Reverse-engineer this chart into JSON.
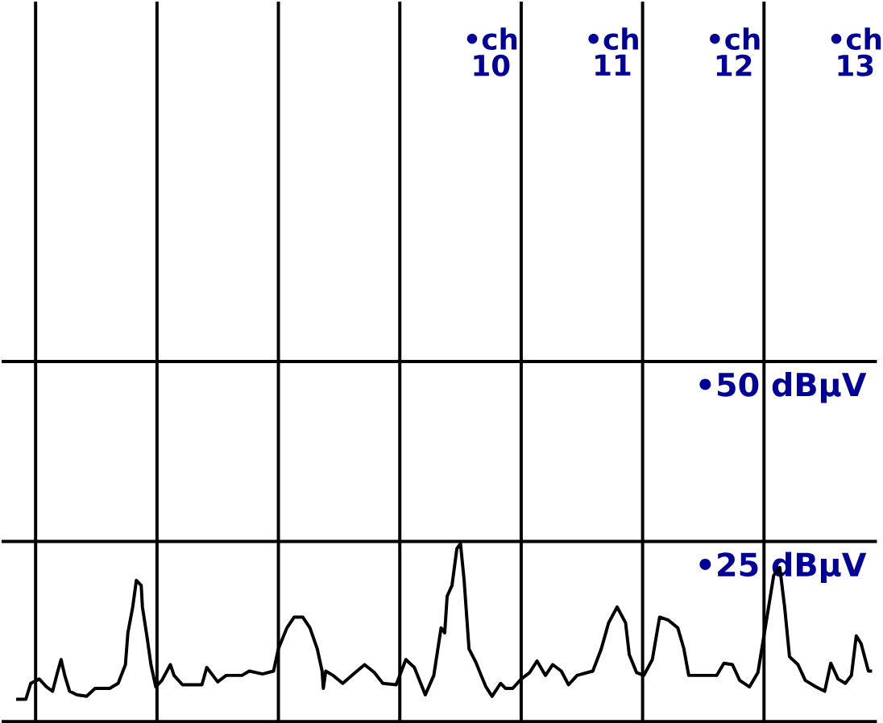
{
  "chart_data": {
    "type": "line",
    "xlim": [
      5.97,
      13.18
    ],
    "ylim": [
      0,
      100
    ],
    "xticks": [
      {
        "value": 6.25,
        "label": null
      },
      {
        "value": 7.25,
        "label": null
      },
      {
        "value": 8.25,
        "label": null
      },
      {
        "value": 9.25,
        "label": null
      },
      10,
      {
        "value": 10.25,
        "label": null
      },
      11,
      {
        "value": 11.25,
        "label": null
      },
      12,
      {
        "value": 12.25,
        "label": null
      },
      13
    ],
    "annotations": [
      "•ch",
      "•ch",
      "•ch",
      "•ch"
    ],
    "yticks": [
      {
        "value": 25,
        "label": "•25 dBµV"
      },
      {
        "value": 50,
        "label": "•50 dBµV"
      }
    ],
    "grid": true,
    "series": [
      {
        "color": "#000000",
        "x": [
          6.09,
          6.17,
          6.21,
          6.28,
          6.34,
          6.39,
          6.43,
          6.46,
          6.49,
          6.53,
          6.59,
          6.67,
          6.74,
          6.86,
          6.93,
          6.99,
          7.01,
          7.05,
          7.08,
          7.12,
          7.13,
          7.17,
          7.2,
          7.24,
          7.29,
          7.36,
          7.39,
          7.46,
          7.62,
          7.66,
          7.71,
          7.75,
          7.82,
          7.95,
          8.01,
          8.12,
          8.21,
          8.25,
          8.32,
          8.38,
          8.45,
          8.51,
          8.57,
          8.61,
          8.62,
          8.64,
          8.7,
          8.78,
          8.87,
          8.96,
          9.04,
          9.11,
          9.22,
          9.3,
          9.37,
          9.46,
          9.53,
          9.59,
          9.62,
          9.64,
          9.68,
          9.72,
          9.75,
          9.78,
          9.82,
          9.88,
          9.92,
          9.96,
          10.01,
          10.08,
          10.12,
          10.18,
          10.25,
          10.32,
          10.38,
          10.45,
          10.51,
          10.58,
          10.64,
          10.71,
          10.84,
          10.91,
          10.97,
          11.04,
          11.11,
          11.14,
          11.2,
          11.26,
          11.33,
          11.39,
          11.46,
          11.54,
          11.59,
          11.63,
          11.76,
          11.86,
          11.92,
          11.99,
          12.05,
          12.13,
          12.2,
          12.26,
          12.33,
          12.38,
          12.42,
          12.46,
          12.53,
          12.59,
          12.68,
          12.75,
          12.8,
          12.86,
          12.92,
          12.97,
          13.01,
          13.05,
          13.11,
          13.14
        ],
        "values": [
          3.1,
          3.1,
          5.3,
          5.9,
          4.8,
          4.2,
          6.8,
          8.6,
          6.4,
          4.2,
          3.7,
          3.5,
          4.6,
          4.6,
          5.3,
          7.9,
          12.3,
          15.9,
          19.6,
          18.9,
          15.9,
          11.5,
          7.9,
          4.8,
          5.7,
          7.9,
          6.4,
          5.1,
          5.1,
          7.5,
          6.4,
          5.5,
          6.4,
          6.4,
          7.0,
          6.6,
          7.0,
          10.1,
          13.0,
          14.5,
          14.5,
          13.0,
          10.1,
          7.0,
          4.6,
          7.0,
          6.4,
          5.3,
          6.6,
          7.9,
          6.8,
          5.3,
          5.1,
          8.6,
          7.5,
          3.7,
          6.4,
          13.0,
          12.3,
          17.4,
          18.9,
          24.0,
          24.7,
          19.6,
          10.1,
          8.1,
          6.4,
          4.8,
          3.5,
          5.3,
          4.6,
          4.6,
          5.9,
          6.8,
          8.4,
          6.4,
          7.9,
          7.0,
          5.1,
          6.4,
          7.0,
          10.1,
          13.7,
          15.9,
          13.7,
          9.3,
          6.8,
          6.4,
          8.6,
          14.5,
          14.1,
          13.0,
          10.1,
          6.4,
          6.4,
          6.4,
          8.1,
          7.9,
          5.7,
          4.8,
          6.8,
          13.0,
          20.3,
          21.4,
          15.9,
          9.0,
          7.9,
          5.7,
          4.8,
          4.2,
          8.1,
          5.9,
          5.3,
          6.4,
          11.9,
          10.8,
          7.0,
          7.0
        ]
      }
    ]
  }
}
